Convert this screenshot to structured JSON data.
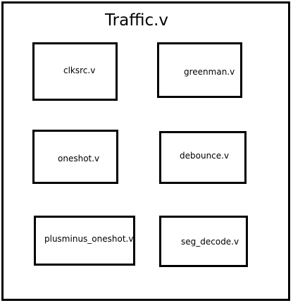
{
  "diagram": {
    "title": "Traffic.v",
    "modules": [
      {
        "label": "clksrc.v"
      },
      {
        "label": "greenman.v"
      },
      {
        "label": "oneshot.v"
      },
      {
        "label": "debounce.v"
      },
      {
        "label": "plusminus_oneshot.v"
      },
      {
        "label": "seg_decode.v"
      }
    ]
  }
}
